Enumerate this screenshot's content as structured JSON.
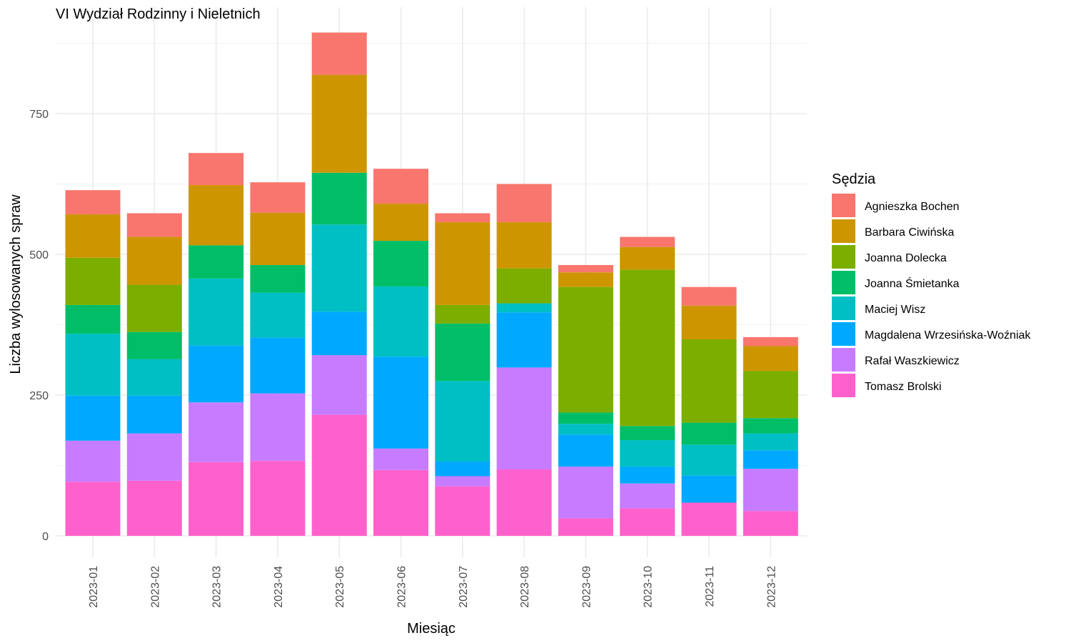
{
  "chart_data": {
    "type": "bar",
    "stacked": true,
    "title": "VI Wydział Rodzinny i Nieletnich",
    "xlabel": "Miesiąc",
    "ylabel": "Liczba wylosowanych spraw",
    "ylim": [
      0,
      900
    ],
    "y_ticks": [
      0,
      250,
      500,
      750
    ],
    "grid": true,
    "legend_title": "Sędzia",
    "legend_position": "right",
    "categories": [
      "2023-01",
      "2023-02",
      "2023-03",
      "2023-04",
      "2023-05",
      "2023-06",
      "2023-07",
      "2023-08",
      "2023-09",
      "2023-10",
      "2023-11",
      "2023-12"
    ],
    "series": [
      {
        "name": "Agnieszka Bochen",
        "color": "#F8766D",
        "values": [
          43,
          42,
          57,
          54,
          75,
          62,
          16,
          68,
          13,
          18,
          33,
          16
        ]
      },
      {
        "name": "Barbara Ciwińska",
        "color": "#CD9600",
        "values": [
          77,
          85,
          107,
          93,
          174,
          66,
          147,
          82,
          26,
          40,
          60,
          44
        ]
      },
      {
        "name": "Joanna Dolecka",
        "color": "#7CAE00",
        "values": [
          84,
          84,
          0,
          0,
          0,
          0,
          33,
          62,
          223,
          278,
          148,
          84
        ]
      },
      {
        "name": "Joanna Śmietanka",
        "color": "#00BE67",
        "values": [
          51,
          48,
          59,
          49,
          92,
          81,
          102,
          0,
          20,
          25,
          39,
          27
        ]
      },
      {
        "name": "Maciej Wisz",
        "color": "#00BFC4",
        "values": [
          110,
          65,
          119,
          80,
          155,
          125,
          143,
          16,
          19,
          47,
          55,
          30
        ]
      },
      {
        "name": "Magdalena Wrzesińska-Woźniak",
        "color": "#00A9FF",
        "values": [
          80,
          67,
          101,
          99,
          77,
          163,
          26,
          98,
          57,
          30,
          48,
          33
        ]
      },
      {
        "name": "Rafał Waszkiewicz",
        "color": "#C77CFF",
        "values": [
          73,
          84,
          106,
          120,
          106,
          38,
          18,
          181,
          92,
          44,
          0,
          75
        ]
      },
      {
        "name": "Tomasz Brolski",
        "color": "#FF61CC",
        "values": [
          96,
          98,
          131,
          133,
          215,
          117,
          88,
          118,
          31,
          49,
          59,
          44
        ]
      }
    ]
  }
}
